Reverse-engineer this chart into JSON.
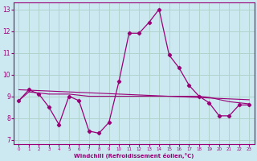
{
  "xlabel": "Windchill (Refroidissement éolien,°C)",
  "bg_color": "#cce8f0",
  "grid_color": "#b0d4cc",
  "line_color": "#990077",
  "hours": [
    0,
    1,
    2,
    3,
    4,
    5,
    6,
    7,
    8,
    9,
    10,
    11,
    12,
    13,
    14,
    15,
    16,
    17,
    18,
    19,
    20,
    21,
    22,
    23
  ],
  "windchill": [
    8.8,
    9.3,
    9.1,
    8.5,
    7.7,
    9.0,
    8.8,
    7.4,
    7.3,
    7.8,
    9.7,
    11.9,
    11.9,
    12.4,
    13.0,
    10.9,
    10.3,
    9.5,
    9.0,
    8.7,
    8.1,
    8.1,
    8.6,
    8.6
  ],
  "temp_line": [
    8.8,
    9.2,
    9.15,
    9.1,
    9.1,
    9.1,
    9.05,
    9.0,
    9.0,
    9.0,
    9.0,
    9.0,
    9.0,
    9.0,
    9.0,
    9.0,
    9.0,
    9.0,
    9.0,
    8.95,
    8.85,
    8.75,
    8.7,
    8.65
  ],
  "trend1": [
    9.3,
    9.28,
    9.26,
    9.24,
    9.22,
    9.2,
    9.18,
    9.16,
    9.14,
    9.12,
    9.1,
    9.08,
    9.06,
    9.04,
    9.02,
    9.0,
    8.98,
    8.96,
    8.94,
    8.92,
    8.9,
    8.88,
    8.86,
    8.84
  ],
  "ylim": [
    6.8,
    13.3
  ],
  "xlim": [
    -0.5,
    23.5
  ],
  "yticks": [
    7,
    8,
    9,
    10,
    11,
    12,
    13
  ],
  "xticks": [
    0,
    1,
    2,
    3,
    4,
    5,
    6,
    7,
    8,
    9,
    10,
    11,
    12,
    13,
    14,
    15,
    16,
    17,
    18,
    19,
    20,
    21,
    22,
    23
  ]
}
